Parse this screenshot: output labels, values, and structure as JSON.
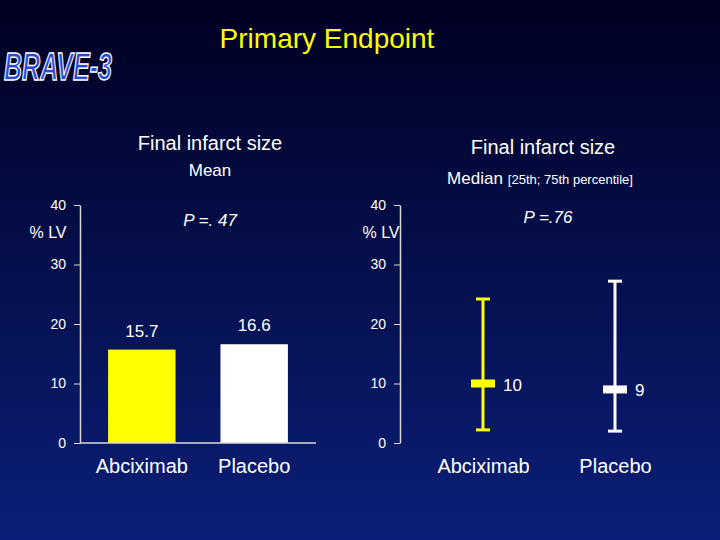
{
  "slide": {
    "title": "Primary Endpoint",
    "logo": "BRAVE-3"
  },
  "chart_data": [
    {
      "type": "bar",
      "title": "Final infarct size",
      "subtitle": "Mean",
      "annotation": "P =. 47",
      "y_label": "% LV",
      "categories": [
        "Abciximab",
        "Placebo"
      ],
      "values": [
        15.7,
        16.6
      ],
      "colors": [
        "#ffff00",
        "#ffffff"
      ],
      "ylim": [
        0,
        40
      ],
      "yticks": [
        0,
        10,
        20,
        30,
        40
      ],
      "data_labels": true
    },
    {
      "type": "range",
      "title": "Final infarct size",
      "subtitle": "Median",
      "subtitle_note": "[25th; 75th percentile]",
      "annotation": "P =.76",
      "y_label": "% LV",
      "categories": [
        "Abciximab",
        "Placebo"
      ],
      "values": [
        10,
        9
      ],
      "q25": [
        2.2,
        2.0
      ],
      "q75": [
        24.2,
        27.2
      ],
      "colors": [
        "#ffff00",
        "#ffffff"
      ],
      "ylim": [
        0,
        40
      ],
      "yticks": [
        0,
        10,
        20,
        30,
        40
      ],
      "data_labels": true
    }
  ]
}
